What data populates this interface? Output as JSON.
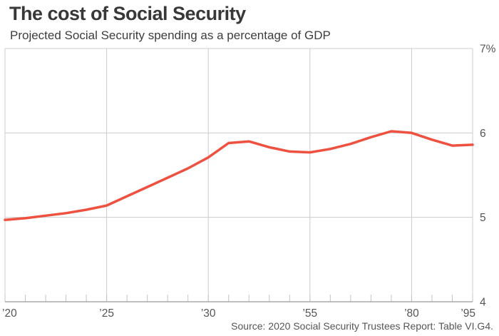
{
  "header": {
    "title": "The cost of Social Security",
    "subtitle": "Projected Social Security spending as a percentage of GDP"
  },
  "source": {
    "text": "Source: 2020 Social Security Trustees Report: Table VI.G4."
  },
  "colors": {
    "line": "#ee5140",
    "grid": "#cccccc",
    "tick": "#c4c4c4",
    "bottom_axis": "#999999",
    "axis_text": "#555555",
    "title_text": "#383838"
  },
  "chart_data": {
    "type": "line",
    "title": "The cost of Social Security",
    "subtitle": "Projected Social Security spending as a percentage of GDP",
    "unit": "percent of GDP",
    "x_spacing": "categorical",
    "x": [
      2020,
      2021,
      2022,
      2023,
      2024,
      2025,
      2026,
      2027,
      2028,
      2029,
      2030,
      2035,
      2040,
      2045,
      2050,
      2055,
      2060,
      2065,
      2070,
      2075,
      2080,
      2085,
      2090,
      2095
    ],
    "values": [
      4.97,
      4.99,
      5.02,
      5.05,
      5.09,
      5.14,
      5.25,
      5.36,
      5.47,
      5.58,
      5.71,
      5.88,
      5.9,
      5.83,
      5.78,
      5.77,
      5.81,
      5.87,
      5.95,
      6.02,
      6.0,
      5.92,
      5.85,
      5.86
    ],
    "x_tick_labels": [
      {
        "index": 0,
        "label": "’20"
      },
      {
        "index": 5,
        "label": "’25"
      },
      {
        "index": 10,
        "label": "’30"
      },
      {
        "index": 15,
        "label": "’55"
      },
      {
        "index": 20,
        "label": "’80"
      },
      {
        "index": 23,
        "label": "’95"
      }
    ],
    "y_ticks": [
      {
        "value": 7,
        "label": "7%"
      },
      {
        "value": 6,
        "label": "6"
      },
      {
        "value": 5,
        "label": "5"
      },
      {
        "value": 4,
        "label": "4"
      }
    ],
    "ylim": [
      4,
      7
    ],
    "grid": true,
    "legend": "none",
    "y_axis_side": "right",
    "line_color": "#ee5140"
  }
}
